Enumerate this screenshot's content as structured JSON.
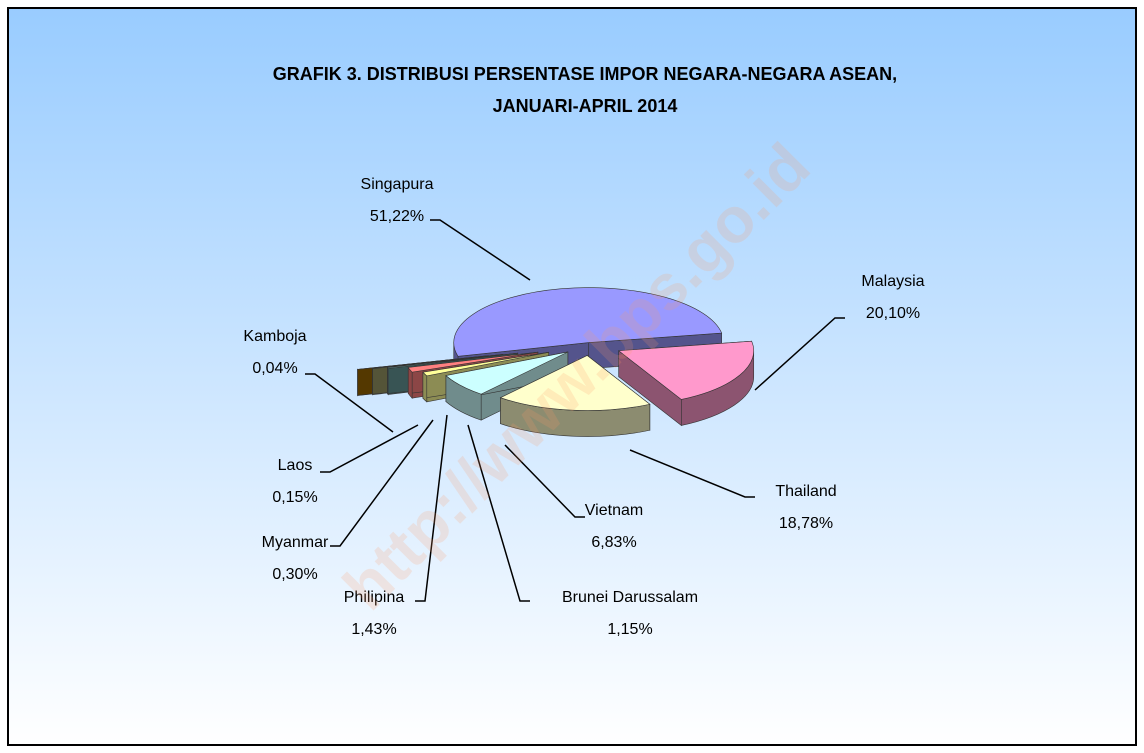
{
  "chart_data": {
    "type": "pie",
    "title": [
      "GRAFIK 3. DISTRIBUSI PERSENTASE IMPOR NEGARA-NEGARA ASEAN,",
      "JANUARI-APRIL 2014"
    ],
    "watermark": "http://www.bps.go.id",
    "categories": [
      "Singapura",
      "Malaysia",
      "Thailand",
      "Vietnam",
      "Brunei Darussalam",
      "Philipina",
      "Myanmar",
      "Laos",
      "Kamboja"
    ],
    "values": [
      51.22,
      20.1,
      18.78,
      6.83,
      1.15,
      1.43,
      0.3,
      0.15,
      0.04
    ],
    "value_labels": [
      "51,22%",
      "20,10%",
      "18,78%",
      "6,83%",
      "1,15%",
      "1,43%",
      "0,30%",
      "0,15%",
      "0,04%"
    ],
    "colors": [
      "#9999ff",
      "#ff99cc",
      "#ffffcc",
      "#ccffff",
      "#ffff99",
      "#ff8080",
      "#669999",
      "#999966",
      "#996600"
    ]
  }
}
